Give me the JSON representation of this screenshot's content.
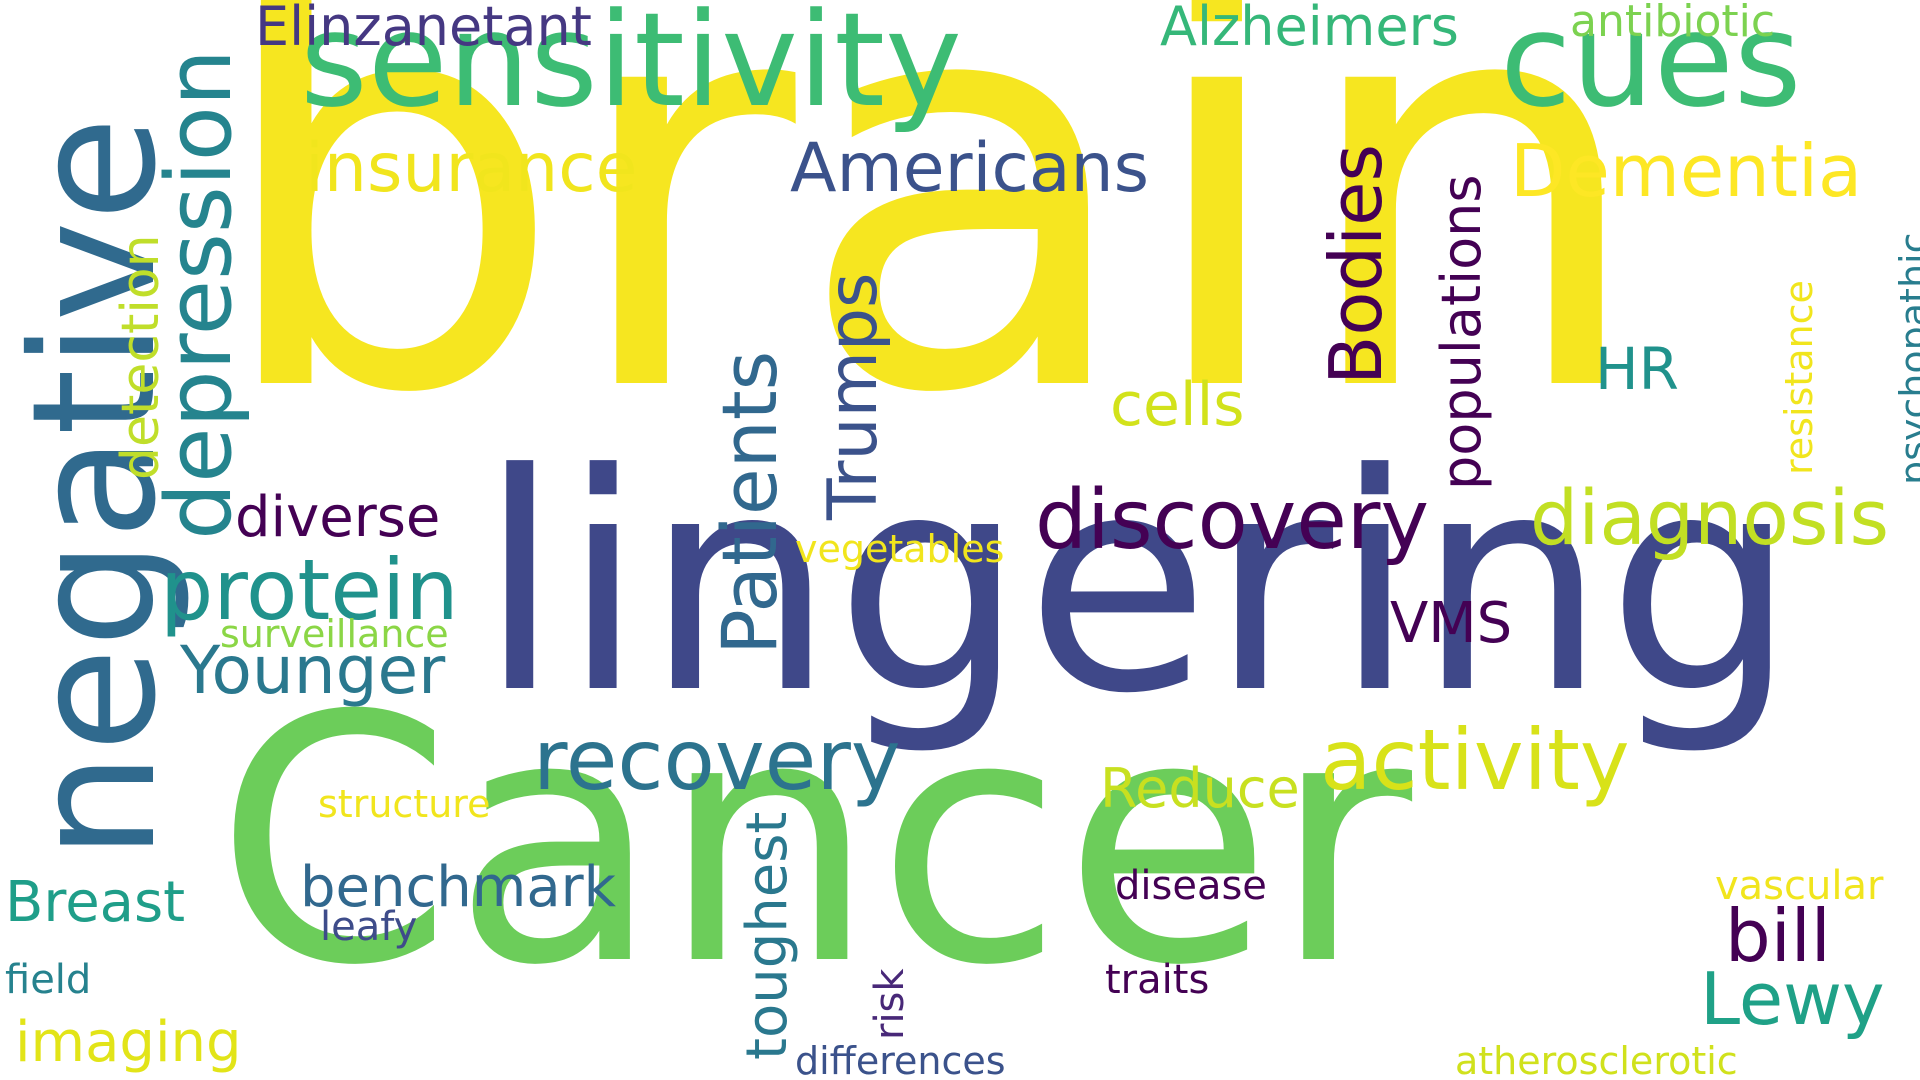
{
  "words": [
    {
      "text": "brain",
      "color": "#f6e620"
    },
    {
      "text": "lingering",
      "color": "#3f4889"
    },
    {
      "text": "Cancer",
      "color": "#6ccd5a"
    },
    {
      "text": "negative",
      "color": "#306a8e"
    },
    {
      "text": "sensitivity",
      "color": "#3dbc74"
    },
    {
      "text": "cues",
      "color": "#3dbc74"
    },
    {
      "text": "depression",
      "color": "#25848e"
    },
    {
      "text": "detection",
      "color": "#c0de2a"
    },
    {
      "text": "Elinzanetant",
      "color": "#453882"
    },
    {
      "text": "Alzheimers",
      "color": "#35b779"
    },
    {
      "text": "antibiotic",
      "color": "#7cd250"
    },
    {
      "text": "insurance",
      "color": "#f1e51d"
    },
    {
      "text": "Americans",
      "color": "#3b528b"
    },
    {
      "text": "Dementia",
      "color": "#fde725"
    },
    {
      "text": "Bodies",
      "color": "#440154"
    },
    {
      "text": "populations",
      "color": "#440154"
    },
    {
      "text": "resistance",
      "color": "#f1e51d"
    },
    {
      "text": "psychopathic",
      "color": "#287d8e"
    },
    {
      "text": "Patients",
      "color": "#31688e"
    },
    {
      "text": "Trumps",
      "color": "#3b528b"
    },
    {
      "text": "cells",
      "color": "#d2e21b"
    },
    {
      "text": "HR",
      "color": "#20928c"
    },
    {
      "text": "discovery",
      "color": "#440154"
    },
    {
      "text": "diagnosis",
      "color": "#c2df23"
    },
    {
      "text": "diverse",
      "color": "#440154"
    },
    {
      "text": "vegetables",
      "color": "#f1e51d"
    },
    {
      "text": "protein",
      "color": "#20928c"
    },
    {
      "text": "surveillance",
      "color": "#8bd646"
    },
    {
      "text": "Younger",
      "color": "#2a788e"
    },
    {
      "text": "VMS",
      "color": "#440154"
    },
    {
      "text": "recovery",
      "color": "#2c738e"
    },
    {
      "text": "activity",
      "color": "#d8e219"
    },
    {
      "text": "Reduce",
      "color": "#c8e020"
    },
    {
      "text": "structure",
      "color": "#f1e51d"
    },
    {
      "text": "toughest",
      "color": "#2a788e"
    },
    {
      "text": "benchmark",
      "color": "#31688e"
    },
    {
      "text": "Breast",
      "color": "#1f9e89"
    },
    {
      "text": "leafy",
      "color": "#3e4c8a"
    },
    {
      "text": "disease",
      "color": "#440154"
    },
    {
      "text": "vascular",
      "color": "#f1e51d"
    },
    {
      "text": "bill",
      "color": "#440154"
    },
    {
      "text": "Lewy",
      "color": "#1fa187"
    },
    {
      "text": "field",
      "color": "#26828e"
    },
    {
      "text": "risk",
      "color": "#482878"
    },
    {
      "text": "traits",
      "color": "#440154"
    },
    {
      "text": "imaging",
      "color": "#e2e418"
    },
    {
      "text": "differences",
      "color": "#3b528b"
    },
    {
      "text": "atherosclerotic",
      "color": "#d0e11c"
    }
  ]
}
